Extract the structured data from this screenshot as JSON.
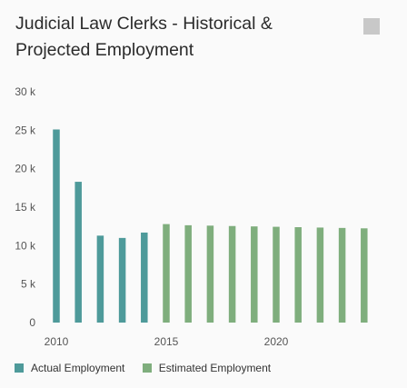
{
  "header": {
    "title": "Judicial Law Clerks - Historical & Projected Employment",
    "menu_icon": "chart-menu-icon"
  },
  "chart_data": {
    "type": "bar",
    "x": [
      2010,
      2011,
      2012,
      2013,
      2014,
      2015,
      2016,
      2017,
      2018,
      2019,
      2020,
      2021,
      2022,
      2023,
      2024
    ],
    "series": [
      {
        "name": "Actual Employment",
        "color": "#4e9a9a",
        "values": [
          25100,
          18300,
          11300,
          11000,
          11700,
          null,
          null,
          null,
          null,
          null,
          null,
          null,
          null,
          null,
          null
        ]
      },
      {
        "name": "Estimated Employment",
        "color": "#7fae7d",
        "values": [
          null,
          null,
          null,
          null,
          null,
          12800,
          12650,
          12600,
          12550,
          12500,
          12450,
          12400,
          12350,
          12300,
          12250
        ]
      }
    ],
    "x_tick_labels": [
      "2010",
      "2015",
      "2020"
    ],
    "y_tick_labels": [
      "0",
      "5 k",
      "10 k",
      "15 k",
      "20 k",
      "25 k",
      "30 k"
    ],
    "ylim": [
      0,
      30000
    ],
    "y_ticks": [
      0,
      5000,
      10000,
      15000,
      20000,
      25000,
      30000
    ],
    "grid": false,
    "legend_position": "bottom-left"
  }
}
